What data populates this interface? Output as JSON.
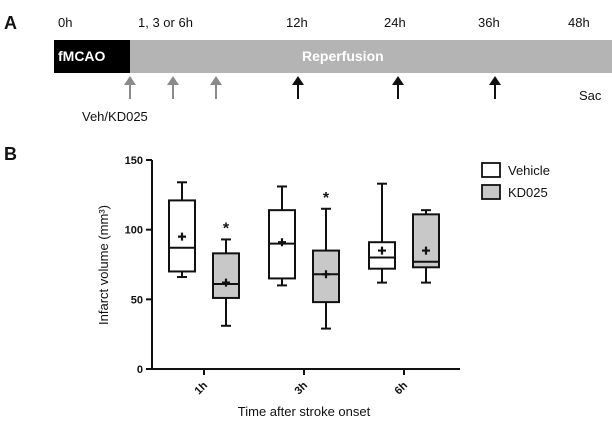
{
  "panel_a": {
    "letter": "A",
    "time_labels": [
      "0h",
      "1, 3 or 6h",
      "12h",
      "24h",
      "36h",
      "48h"
    ],
    "occlusion_label": "fMCAO",
    "reperfusion_label": "Reperfusion",
    "treatment_label": "Veh/KD025",
    "end_label": "Sac"
  },
  "panel_b": {
    "letter": "B",
    "legend": [
      {
        "name": "Vehicle",
        "color": "#ffffff"
      },
      {
        "name": "KD025",
        "color": "#c8c8c8"
      }
    ]
  },
  "chart_data": {
    "type": "box",
    "xlabel": "Time after stroke onset",
    "ylabel": "Infarct volume (mm³)",
    "ylim": [
      0,
      150
    ],
    "yticks": [
      "0",
      "50",
      "100",
      "150"
    ],
    "categories": [
      "1h",
      "3h",
      "6h"
    ],
    "series": [
      {
        "name": "Vehicle",
        "color": "#ffffff",
        "boxes": [
          {
            "min": 66,
            "q1": 70,
            "median": 87,
            "q3": 121,
            "max": 134,
            "mean": 95
          },
          {
            "min": 60,
            "q1": 65,
            "median": 90,
            "q3": 114,
            "max": 131,
            "mean": 91
          },
          {
            "min": 62,
            "q1": 72,
            "median": 80,
            "q3": 91,
            "max": 133,
            "mean": 85
          }
        ]
      },
      {
        "name": "KD025",
        "color": "#c8c8c8",
        "boxes": [
          {
            "min": 31,
            "q1": 51,
            "median": 61,
            "q3": 83,
            "max": 93,
            "mean": 62
          },
          {
            "min": 29,
            "q1": 48,
            "median": 68,
            "q3": 85,
            "max": 115,
            "mean": 68
          },
          {
            "min": 62,
            "q1": 73,
            "median": 77,
            "q3": 111,
            "max": 114,
            "mean": 85
          }
        ]
      }
    ],
    "annotations": [
      {
        "category": "1h",
        "series": "KD025",
        "text": "*"
      },
      {
        "category": "3h",
        "series": "KD025",
        "text": "*"
      }
    ]
  }
}
